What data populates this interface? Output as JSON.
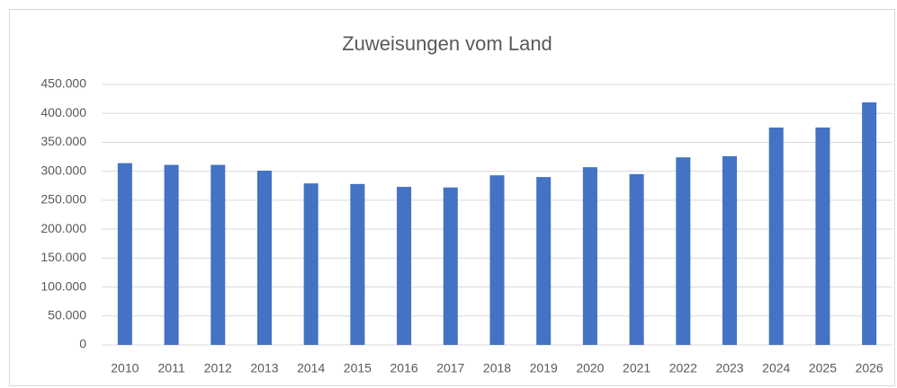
{
  "chart_data": {
    "type": "bar",
    "title": "Zuweisungen vom Land",
    "categories": [
      "2010",
      "2011",
      "2012",
      "2013",
      "2014",
      "2015",
      "2016",
      "2017",
      "2018",
      "2019",
      "2020",
      "2021",
      "2022",
      "2023",
      "2024",
      "2025",
      "2026"
    ],
    "values": [
      314000,
      311000,
      311000,
      301000,
      279000,
      278000,
      273000,
      272000,
      293000,
      290000,
      307000,
      295000,
      324000,
      326000,
      375500,
      375500,
      419000
    ],
    "color": "#4472c4",
    "ylim": [
      0,
      450000
    ],
    "yticks": [
      0,
      {
        "value": 50000,
        "label": "50.000"
      },
      {
        "value": 100000,
        "label": "100.000"
      },
      {
        "value": 150000,
        "label": "150.000"
      },
      {
        "value": 200000,
        "label": "200.000"
      },
      {
        "value": 250000,
        "label": "250.000"
      },
      {
        "value": 300000,
        "label": "300.000"
      },
      {
        "value": 350000,
        "label": "350.000"
      },
      {
        "value": 400000,
        "label": "400.000"
      },
      {
        "value": 450000,
        "label": "450.000"
      }
    ],
    "grid": true
  }
}
